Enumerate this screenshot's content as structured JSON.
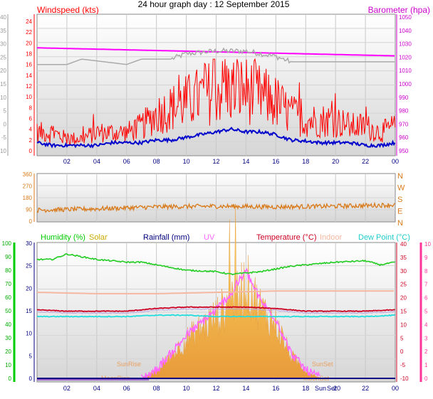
{
  "title": "24 hour graph day : 12 September 2015",
  "colors": {
    "wind": "#ff0000",
    "gust_avg": "#0000cc",
    "baro": "#ff00ff",
    "gray": "#aaaaaa",
    "dir": "#d97a1a",
    "humidity": "#22cc22",
    "solar": "#ccaa00",
    "rain": "#000080",
    "uv": "#ff66ff",
    "temp": "#cc0022",
    "indoor": "#f4b8a0",
    "dew": "#22dddd",
    "axis_left": "#999999",
    "axis_red": "#ff0000",
    "axis_right": "#cc00cc",
    "axis_green": "#00cc00",
    "axis_pink": "#ff3399",
    "axis_time": "#000080"
  },
  "x_ticks": [
    "02",
    "04",
    "06",
    "08",
    "10",
    "12",
    "14",
    "16",
    "18",
    "20",
    "22",
    "00"
  ],
  "chart_data": [
    {
      "type": "line",
      "title": "Windspeed (kts) / Barometer (hpa)",
      "legend": [
        "Windspeed (kts)",
        "Barometer (hpa)"
      ],
      "y_left_gray_ticks": [
        "40",
        "35",
        "30",
        "25",
        "20",
        "15",
        "10",
        "5",
        "0",
        "-5",
        "-10"
      ],
      "y_left_red_ticks": [
        "24",
        "22",
        "20",
        "18",
        "16",
        "14",
        "12",
        "10",
        "8",
        "6",
        "4",
        "2",
        "0"
      ],
      "y_right_ticks": [
        "1050",
        "1040",
        "1030",
        "1020",
        "1010",
        "1000",
        "990",
        "980",
        "970",
        "960",
        "950"
      ],
      "ylim_left": [
        0,
        25
      ],
      "ylim_right": [
        950,
        1050
      ],
      "series": [
        {
          "name": "Windspeed (kts)",
          "x": [
            0,
            1,
            2,
            3,
            4,
            5,
            6,
            7,
            8,
            9,
            10,
            11,
            12,
            13,
            14,
            15,
            16,
            17,
            18,
            19,
            20,
            21,
            22,
            23,
            24
          ],
          "values": [
            3,
            3,
            2,
            2,
            3,
            3,
            3,
            4,
            6,
            7,
            8,
            9,
            10,
            10,
            10,
            9,
            8,
            6,
            5,
            5,
            5,
            4,
            4,
            3,
            4
          ]
        },
        {
          "name": "Barometer (hpa)",
          "x": [
            0,
            4,
            8,
            12,
            16,
            20,
            24
          ],
          "values": [
            1027,
            1026,
            1025,
            1024,
            1023,
            1022,
            1021
          ]
        }
      ]
    },
    {
      "type": "scatter",
      "title": "Wind direction",
      "y_ticks": [
        "360",
        "270",
        "180",
        "90",
        "0"
      ],
      "direction_labels": [
        "N",
        "W",
        "S",
        "E",
        "N"
      ],
      "ylim": [
        0,
        360
      ],
      "series": [
        {
          "name": "direction",
          "x": [
            0,
            4,
            8,
            12,
            16,
            20,
            24
          ],
          "values": [
            85,
            95,
            110,
            115,
            110,
            115,
            125
          ]
        }
      ]
    },
    {
      "type": "line",
      "legend": [
        "Humidity (%)",
        "Solar",
        "Rainfall (mm)",
        "UV",
        "Temperature (°C)",
        "Indoor",
        "Dew Point (°C)"
      ],
      "y_humidity_ticks": [
        "100",
        "90",
        "80",
        "70",
        "60",
        "50",
        "40",
        "30",
        "20",
        "10",
        "0"
      ],
      "y_rain_ticks": [
        "30",
        "25",
        "20",
        "15",
        "10",
        "5",
        "0"
      ],
      "y_temp_ticks": [
        "40",
        "35",
        "30",
        "25",
        "20",
        "15",
        "10",
        "5",
        "0",
        "-5",
        "-10"
      ],
      "y_uv_ticks": [
        "10",
        "9",
        "8",
        "7",
        "6",
        "5",
        "4",
        "3",
        "2",
        "1",
        "0"
      ],
      "annotations": [
        "SunRise",
        "MoonRise",
        "SunSet",
        "MoonSet",
        "Sun",
        "Set"
      ],
      "series": [
        {
          "name": "Humidity (%)",
          "x": [
            0,
            1,
            2,
            4,
            6,
            7,
            8,
            10,
            12,
            13,
            15,
            17,
            18,
            20,
            22,
            23,
            24
          ],
          "values": [
            88,
            88,
            92,
            88,
            86,
            86,
            84,
            80,
            79,
            77,
            79,
            83,
            84,
            86,
            87,
            84,
            86
          ]
        },
        {
          "name": "Temperature (°C)",
          "x": [
            0,
            2,
            4,
            6,
            8,
            10,
            12,
            14,
            16,
            18,
            20,
            22,
            24
          ],
          "values": [
            15.5,
            15,
            15,
            15,
            16,
            16.5,
            16.5,
            16.5,
            16,
            15,
            15,
            15,
            15.5
          ]
        },
        {
          "name": "Dew Point (°C)",
          "x": [
            0,
            2,
            4,
            6,
            8,
            10,
            12,
            14,
            16,
            18,
            20,
            22,
            24
          ],
          "values": [
            13,
            13,
            13,
            13,
            13.5,
            13.5,
            13,
            13,
            13,
            13,
            13,
            13,
            13.5
          ]
        },
        {
          "name": "Indoor",
          "x": [
            0,
            4,
            8,
            12,
            16,
            20,
            24
          ],
          "values": [
            22,
            21.5,
            21.5,
            22,
            22.5,
            22.5,
            22.5
          ]
        },
        {
          "name": "Solar",
          "x": [
            7,
            8,
            9,
            10,
            11,
            12,
            13,
            14,
            15,
            16,
            17,
            18,
            19
          ],
          "values": [
            0,
            2,
            6,
            10,
            13,
            16,
            20,
            25,
            18,
            14,
            6,
            2,
            0
          ]
        }
      ]
    }
  ]
}
